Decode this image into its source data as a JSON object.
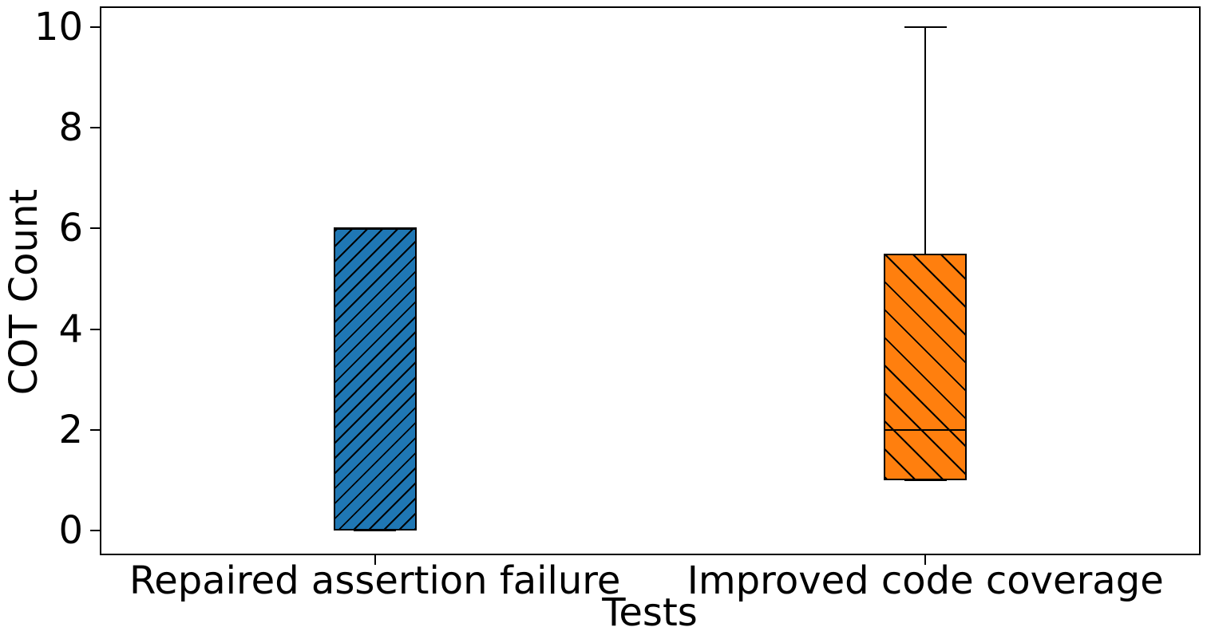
{
  "chart_data": {
    "type": "box",
    "title": "",
    "xlabel": "Tests",
    "ylabel": "COT Count",
    "yticks": [
      0,
      2,
      4,
      6,
      8,
      10
    ],
    "ylim": [
      -0.49,
      10.41
    ],
    "grid": false,
    "legend": "none",
    "categories": [
      "Repaired assertion failure",
      "Improved code coverage"
    ],
    "boxes": [
      {
        "label": "Repaired assertion failure",
        "whisker_low": 0,
        "q1": 0,
        "median": 6,
        "q3": 6,
        "whisker_high": 6,
        "color": "#1f77b4",
        "hatch": "/"
      },
      {
        "label": "Improved code coverage",
        "whisker_low": 1,
        "q1": 1,
        "median": 2,
        "q3": 5.5,
        "whisker_high": 10,
        "color": "#ff7f0e",
        "hatch": "\\"
      }
    ],
    "edge_color": "#000000",
    "background_color": "#ffffff"
  }
}
